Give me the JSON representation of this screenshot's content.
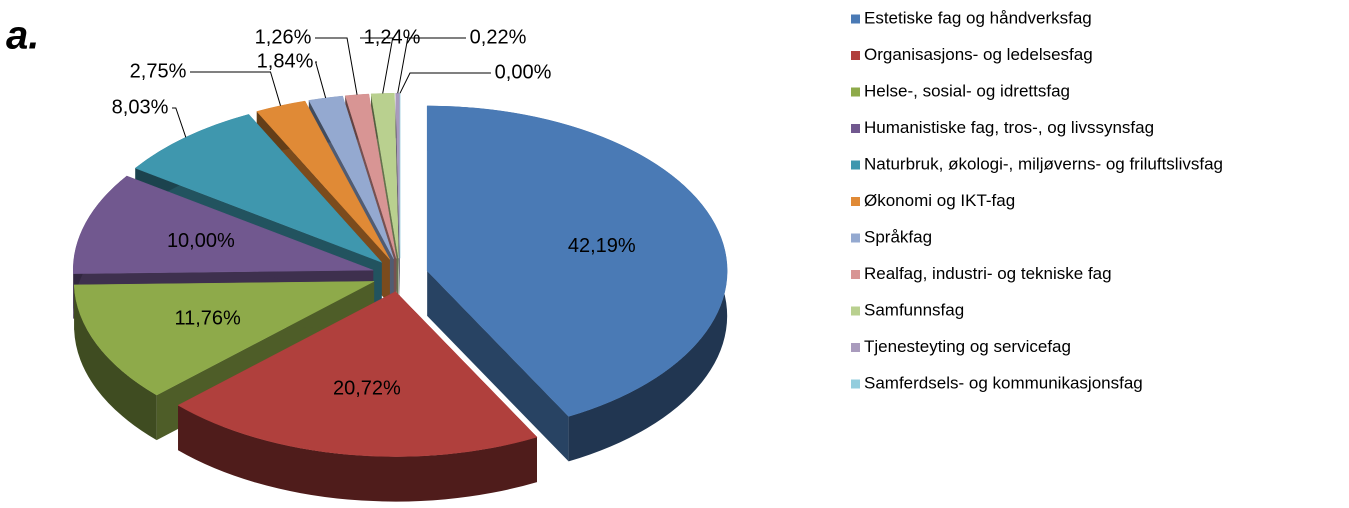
{
  "panel_label": "a.",
  "chart_data": {
    "type": "pie",
    "categories": [
      "Estetiske fag og håndverksfag",
      "Organisasjons- og ledelsesfag",
      "Helse-, sosial- og idrettsfag",
      "Humanistiske fag, tros-, og livssynsfag",
      "Naturbruk, økologi-, miljøverns- og friluftslivsfag",
      "Økonomi og IKT-fag",
      "Språkfag",
      "Realfag, industri- og tekniske fag",
      "Samfunnsfag",
      "Tjenesteyting og servicefag",
      "Samferdsels- og kommunikasjonsfag"
    ],
    "values": [
      42.19,
      20.72,
      11.76,
      10.0,
      8.03,
      2.75,
      1.84,
      1.26,
      1.24,
      0.22,
      0.0
    ],
    "value_labels": [
      "42,19%",
      "20,72%",
      "11,76%",
      "10,00%",
      "8,03%",
      "2,75%",
      "1,84%",
      "1,26%",
      "1,24%",
      "0,22%",
      "0,00%"
    ],
    "colors": [
      "#4a7ab5",
      "#b0403d",
      "#8eaa4a",
      "#71588f",
      "#3f97ae",
      "#e08a36",
      "#94a9d0",
      "#d89594",
      "#b9d08f",
      "#a99bbd",
      "#93cddd"
    ],
    "legend": "right"
  }
}
